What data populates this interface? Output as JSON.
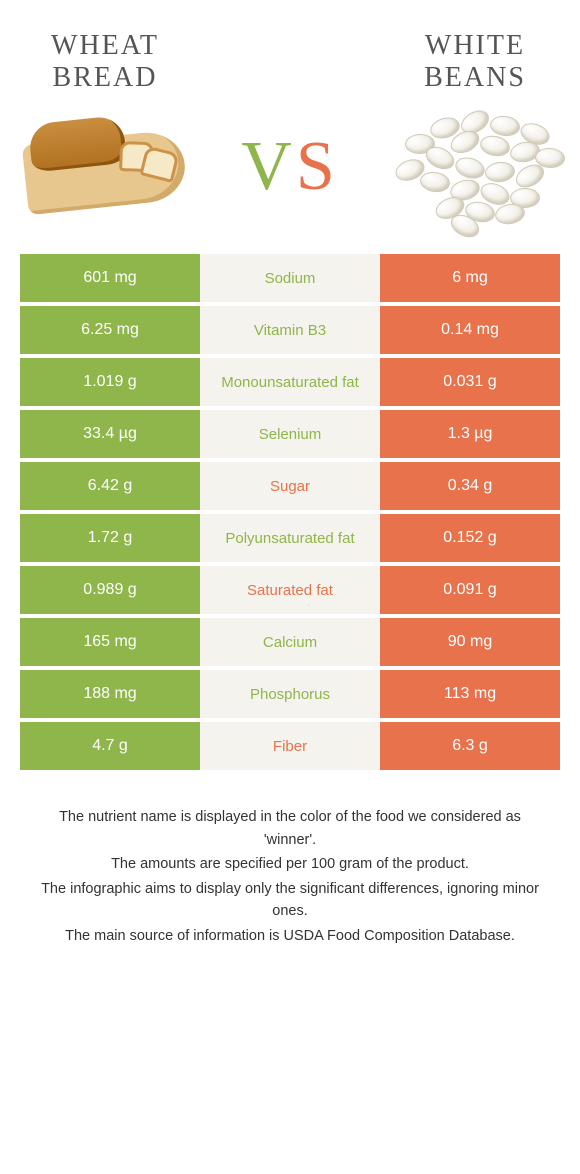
{
  "colors": {
    "green": "#8eb64a",
    "orange": "#e8724c",
    "mid_bg": "#f5f3ee",
    "title_text": "#555555"
  },
  "left_food": {
    "title": "WHEAT BREAD"
  },
  "right_food": {
    "title": "WHITE BEANS"
  },
  "vs": {
    "v": "V",
    "s": "S"
  },
  "rows": [
    {
      "left": "601 mg",
      "mid": "Sodium",
      "right": "6 mg",
      "winner": "left"
    },
    {
      "left": "6.25 mg",
      "mid": "Vitamin B3",
      "right": "0.14 mg",
      "winner": "left"
    },
    {
      "left": "1.019 g",
      "mid": "Monounsaturated fat",
      "right": "0.031 g",
      "winner": "left"
    },
    {
      "left": "33.4 µg",
      "mid": "Selenium",
      "right": "1.3 µg",
      "winner": "left"
    },
    {
      "left": "6.42 g",
      "mid": "Sugar",
      "right": "0.34 g",
      "winner": "right"
    },
    {
      "left": "1.72 g",
      "mid": "Polyunsaturated fat",
      "right": "0.152 g",
      "winner": "left"
    },
    {
      "left": "0.989 g",
      "mid": "Saturated fat",
      "right": "0.091 g",
      "winner": "right"
    },
    {
      "left": "165 mg",
      "mid": "Calcium",
      "right": "90 mg",
      "winner": "left"
    },
    {
      "left": "188 mg",
      "mid": "Phosphorus",
      "right": "113 mg",
      "winner": "left"
    },
    {
      "left": "4.7 g",
      "mid": "Fiber",
      "right": "6.3 g",
      "winner": "right"
    }
  ],
  "footnotes": [
    "The nutrient name is displayed in the color of the food we considered as 'winner'.",
    "The amounts are specified per 100 gram of the product.",
    "The infographic aims to display only the significant differences, ignoring minor ones.",
    "The main source of information is USDA Food Composition Database."
  ]
}
